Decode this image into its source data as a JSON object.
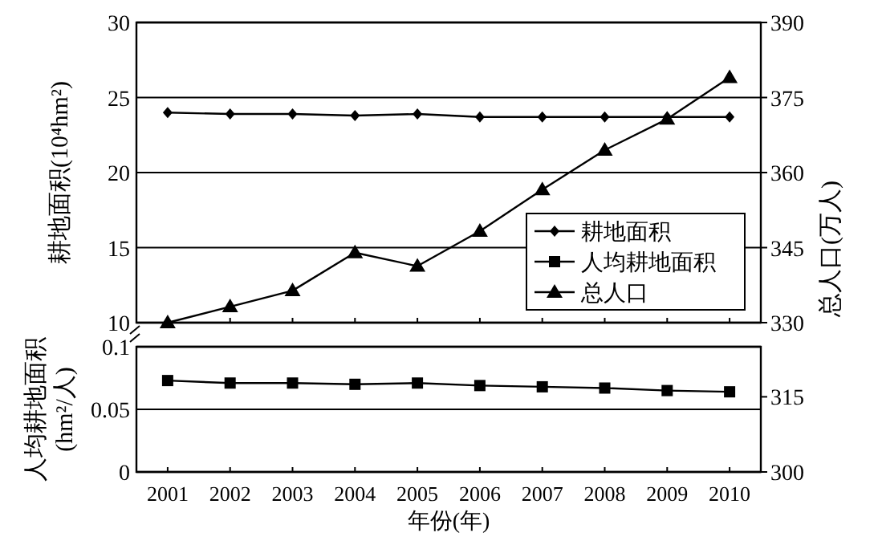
{
  "chart_data": [
    {
      "type": "line",
      "categories": [
        "2001",
        "2002",
        "2003",
        "2004",
        "2005",
        "2006",
        "2007",
        "2008",
        "2009",
        "2010"
      ],
      "series": [
        {
          "name": "耕地面积",
          "color": "#000000",
          "marker": "diamond",
          "values": [
            24.0,
            23.9,
            23.9,
            23.8,
            23.9,
            23.7,
            23.7,
            23.7,
            23.7,
            23.7
          ]
        },
        {
          "name": "总人口",
          "color": "#000000",
          "marker": "triangle",
          "axis": "y2",
          "values": [
            330,
            333.2,
            336.4,
            344,
            341.3,
            348.3,
            356.6,
            364.5,
            370.7,
            379
          ]
        }
      ],
      "ylabel": "耕地面积(10⁴hm²)",
      "y2label": "总人口(万人)",
      "ylim": [
        10,
        30
      ],
      "yticks": [
        10,
        15,
        20,
        25,
        30
      ],
      "y2lim": [
        330,
        390
      ],
      "y2ticks": [
        330,
        345,
        360,
        375,
        390
      ],
      "grid": "y",
      "legend": "bottom right",
      "tick_labels": "y"
    },
    {
      "type": "line",
      "categories": [
        "2001",
        "2002",
        "2003",
        "2004",
        "2005",
        "2006",
        "2007",
        "2008",
        "2009",
        "2010"
      ],
      "series": [
        {
          "name": "人均耕地面积",
          "color": "#000000",
          "marker": "square",
          "values": [
            0.073,
            0.071,
            0.071,
            0.07,
            0.071,
            0.069,
            0.068,
            0.067,
            0.065,
            0.064
          ]
        }
      ],
      "ylabel": "人均耕地面积\n(hm²/人)",
      "xlabel": "年份(年)",
      "ylim": [
        0,
        0.1
      ],
      "yticks": [
        0,
        0.05,
        0.1
      ],
      "y2lim": [
        300,
        325
      ],
      "y2ticks": [
        300,
        315
      ],
      "grid": "y"
    }
  ]
}
